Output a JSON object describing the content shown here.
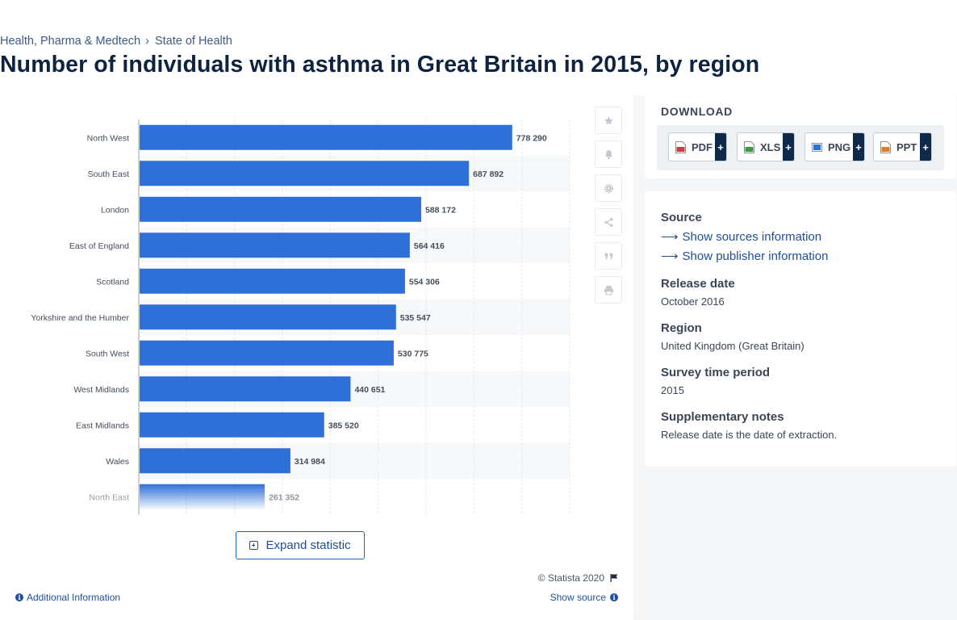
{
  "breadcrumb": {
    "items": [
      "Health, Pharma & Medtech",
      "State of Health"
    ]
  },
  "page_title": "Number of individuals with asthma in Great Britain in 2015, by region",
  "chart_data": {
    "type": "bar",
    "orientation": "horizontal",
    "categories": [
      "North West",
      "South East",
      "London",
      "East of England",
      "Scotland",
      "Yorkshire and the Humber",
      "South West",
      "West Midlands",
      "East Midlands",
      "Wales",
      "North East"
    ],
    "values": [
      778290,
      687892,
      588172,
      564416,
      554306,
      535547,
      530775,
      440651,
      385520,
      314984,
      261352
    ],
    "value_labels": [
      "778 290",
      "687 892",
      "588 172",
      "564 416",
      "554 306",
      "535 547",
      "530 775",
      "440 651",
      "385 520",
      "314 984",
      "261 352"
    ],
    "xlim": [
      0,
      900000
    ],
    "grid": true,
    "bar_color": "#2f6fd8",
    "title": "",
    "xlabel": "",
    "ylabel": ""
  },
  "tools": [
    "star-icon",
    "bell-icon",
    "gear-icon",
    "share-icon",
    "quote-icon",
    "print-icon"
  ],
  "expand_label": "Expand statistic",
  "copyright": "© Statista 2020",
  "additional_info": "Additional Information",
  "show_source": "Show source",
  "download": {
    "title": "DOWNLOAD",
    "formats": [
      {
        "label": "PDF",
        "icon": "pdf-file-icon",
        "color": "#d23b3b"
      },
      {
        "label": "XLS",
        "icon": "xls-file-icon",
        "color": "#3b9b3b"
      },
      {
        "label": "PNG",
        "icon": "png-file-icon",
        "color": "#2f6fd8"
      },
      {
        "label": "PPT",
        "icon": "ppt-file-icon",
        "color": "#e07b24"
      }
    ],
    "plus": "+"
  },
  "source": {
    "heading": "Source",
    "sources_link": "Show sources information",
    "publisher_link": "Show publisher information"
  },
  "details": [
    {
      "heading": "Release date",
      "value": "October 2016"
    },
    {
      "heading": "Region",
      "value": "United Kingdom (Great Britain)"
    },
    {
      "heading": "Survey time period",
      "value": "2015"
    },
    {
      "heading": "Supplementary notes",
      "value": "Release date is the date of extraction."
    }
  ]
}
